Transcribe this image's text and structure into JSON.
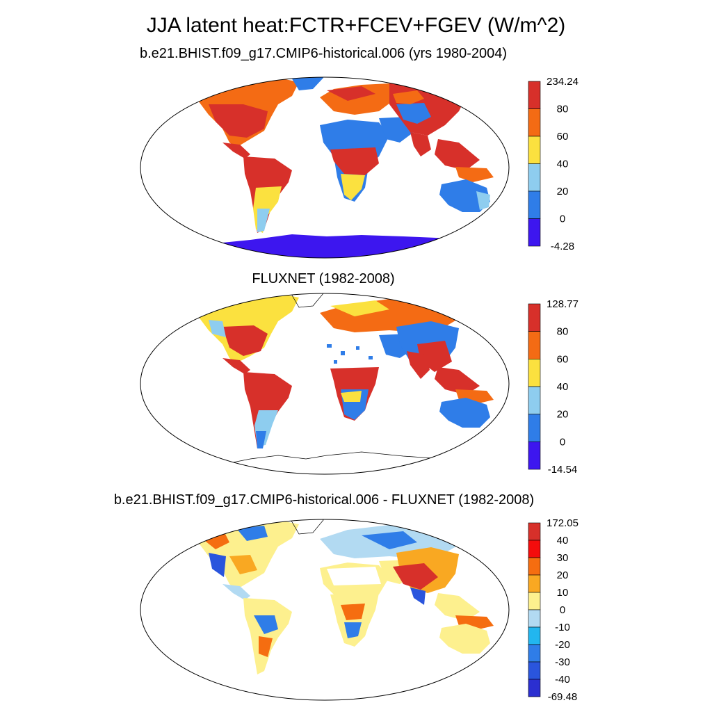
{
  "title": "JJA latent heat:FCTR+FCEV+FGEV (W/m^2)",
  "panels": [
    {
      "subtitle": "b.e21.BHIST.f09_g17.CMIP6-historical.006 (yrs 1980-2004)",
      "colorbar": {
        "labels": [
          "234.24",
          "80",
          "60",
          "40",
          "20",
          "0",
          "-4.28"
        ],
        "colors": [
          "#d7302a",
          "#f46b14",
          "#fbe13f",
          "#8ecdef",
          "#2f7de8",
          "#3d16ef"
        ]
      }
    },
    {
      "subtitle": "FLUXNET (1982-2008)",
      "colorbar": {
        "labels": [
          "128.77",
          "80",
          "60",
          "40",
          "20",
          "0",
          "-14.54"
        ],
        "colors": [
          "#d7302a",
          "#f46b14",
          "#fbe13f",
          "#8ecdef",
          "#2f7de8",
          "#3d16ef"
        ]
      }
    },
    {
      "subtitle": "b.e21.BHIST.f09_g17.CMIP6-historical.006 - FLUXNET (1982-2008)",
      "colorbar": {
        "labels": [
          "172.05",
          "40",
          "30",
          "20",
          "10",
          "0",
          "-10",
          "-20",
          "-30",
          "-40",
          "-69.48"
        ],
        "colors": [
          "#d7302a",
          "#f40c0c",
          "#f56d10",
          "#f9a822",
          "#fdf08e",
          "#b2daf2",
          "#22b6ef",
          "#2f7de8",
          "#2a55dd",
          "#2b2fd0"
        ]
      }
    }
  ]
}
